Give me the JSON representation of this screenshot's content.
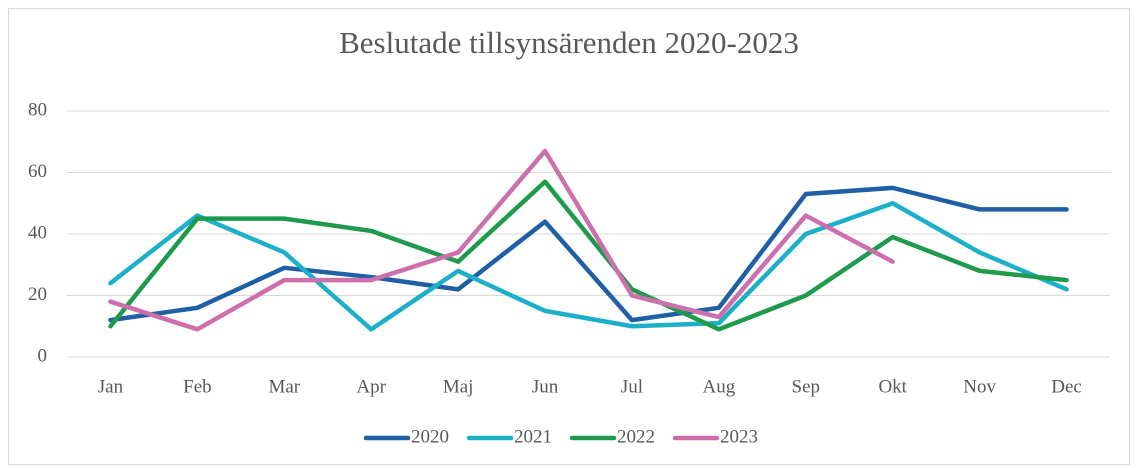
{
  "chart_data": {
    "type": "line",
    "title": "Beslutade tillsynsärenden 2020-2023",
    "categories": [
      "Jan",
      "Feb",
      "Mar",
      "Apr",
      "Maj",
      "Jun",
      "Jul",
      "Aug",
      "Sep",
      "Okt",
      "Nov",
      "Dec"
    ],
    "series": [
      {
        "name": "2020",
        "color": "#1f5fa6",
        "values": [
          12,
          16,
          29,
          26,
          22,
          44,
          12,
          16,
          53,
          55,
          48,
          48
        ]
      },
      {
        "name": "2021",
        "color": "#1cb0c8",
        "values": [
          24,
          46,
          34,
          9,
          28,
          15,
          10,
          11,
          40,
          50,
          34,
          22
        ]
      },
      {
        "name": "2022",
        "color": "#1f9a4c",
        "values": [
          10,
          45,
          45,
          41,
          31,
          57,
          22,
          9,
          20,
          39,
          28,
          25
        ]
      },
      {
        "name": "2023",
        "color": "#cc6fac",
        "values": [
          18,
          9,
          25,
          25,
          34,
          67,
          20,
          13,
          46,
          31,
          null,
          null
        ]
      }
    ],
    "ylim": [
      0,
      80
    ],
    "yticks": [
      0,
      20,
      40,
      60,
      80
    ],
    "grid": true,
    "legend": "bottom"
  }
}
